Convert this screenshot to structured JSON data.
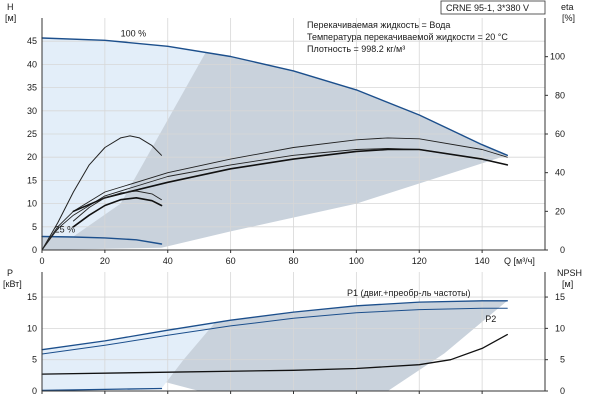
{
  "chart_data": {
    "type": "line",
    "model_label": "CRNE 95-1, 3*380 V",
    "info_lines": [
      "Перекачиваемая жидкость = Вода",
      "Температура перекачиваемой жидкости = 20 °C",
      "Плотность = 998.2 кг/м³"
    ],
    "x_axis": {
      "label": "Q [м³/ч]",
      "range": [
        0,
        160
      ],
      "ticks": [
        "0",
        "20",
        "40",
        "60",
        "80",
        "100",
        "120",
        "140"
      ]
    },
    "top_panel": {
      "y_left": {
        "label_line1": "H",
        "label_line2": "[м]",
        "range": [
          0,
          50
        ],
        "ticks": [
          "0",
          "5",
          "10",
          "15",
          "20",
          "25",
          "30",
          "35",
          "40",
          "45"
        ]
      },
      "y_right": {
        "label_line1": "eta",
        "label_line2": "[%]",
        "range": [
          0,
          120
        ],
        "ticks": [
          "0",
          "20",
          "40",
          "60",
          "80",
          "100"
        ]
      },
      "annotations": [
        {
          "text": "100 %",
          "x": 25,
          "y": 46
        },
        {
          "text": "25 %",
          "x": 4,
          "y": 3.8
        }
      ],
      "series": [
        {
          "axis": "left",
          "color": "#1c4f8c",
          "width": 1.4,
          "points": [
            [
              0,
              45.7
            ],
            [
              20,
              45.2
            ],
            [
              40,
              43.9
            ],
            [
              60,
              41.7
            ],
            [
              80,
              38.6
            ],
            [
              100,
              34.5
            ],
            [
              120,
              29.1
            ],
            [
              140,
              22.7
            ],
            [
              148,
              20.4
            ]
          ]
        },
        {
          "axis": "left",
          "color": "#1c4f8c",
          "width": 1.4,
          "points": [
            [
              0,
              2.9
            ],
            [
              10,
              2.8
            ],
            [
              20,
              2.6
            ],
            [
              30,
              2.2
            ],
            [
              38,
              1.3
            ]
          ]
        },
        {
          "axis": "right",
          "color": "#222222",
          "width": 1.0,
          "points": [
            [
              0,
              0
            ],
            [
              5,
              14
            ],
            [
              10,
              30
            ],
            [
              15,
              44
            ],
            [
              20,
              53
            ],
            [
              25,
              58
            ],
            [
              28,
              59
            ],
            [
              31,
              58
            ],
            [
              35,
              54
            ],
            [
              38,
              49
            ]
          ]
        },
        {
          "axis": "right",
          "color": "#222222",
          "width": 0.9,
          "points": [
            [
              0,
              0
            ],
            [
              5,
              12
            ],
            [
              10,
              20
            ],
            [
              20,
              30
            ],
            [
              40,
              40
            ],
            [
              60,
              47
            ],
            [
              80,
              53
            ],
            [
              100,
              57
            ],
            [
              110,
              58
            ],
            [
              120,
              57.5
            ],
            [
              140,
              52
            ],
            [
              148,
              48
            ]
          ]
        },
        {
          "axis": "right",
          "color": "#222222",
          "width": 0.9,
          "points": [
            [
              0,
              0
            ],
            [
              5,
              11
            ],
            [
              10,
              18
            ],
            [
              20,
              28
            ],
            [
              40,
              38
            ],
            [
              60,
              44
            ],
            [
              80,
              49
            ],
            [
              100,
              52
            ],
            [
              110,
              52.5
            ],
            [
              120,
              52
            ],
            [
              140,
              47
            ],
            [
              148,
              44
            ]
          ]
        },
        {
          "axis": "right",
          "color": "#111111",
          "width": 1.6,
          "points": [
            [
              10,
              20
            ],
            [
              20,
              27
            ],
            [
              40,
              35
            ],
            [
              60,
              42
            ],
            [
              80,
              47
            ],
            [
              100,
              51
            ],
            [
              110,
              52
            ],
            [
              120,
              52
            ],
            [
              140,
              47
            ],
            [
              148,
              44
            ]
          ]
        },
        {
          "axis": "right",
          "color": "#222222",
          "width": 0.9,
          "points": [
            [
              10,
              15
            ],
            [
              15,
              22
            ],
            [
              20,
              27
            ],
            [
              25,
              29.5
            ],
            [
              30,
              30.5
            ],
            [
              35,
              29
            ],
            [
              38,
              26
            ]
          ]
        },
        {
          "axis": "right",
          "color": "#111111",
          "width": 1.6,
          "points": [
            [
              10,
              12
            ],
            [
              15,
              18
            ],
            [
              20,
              23
            ],
            [
              25,
              26
            ],
            [
              30,
              27
            ],
            [
              35,
              25.5
            ],
            [
              38,
              23
            ]
          ]
        }
      ]
    },
    "bottom_panel": {
      "y_left": {
        "label_line1": "P",
        "label_line2": "[кВт]",
        "range": [
          0,
          19
        ],
        "ticks": [
          "0",
          "5",
          "10",
          "15"
        ]
      },
      "y_right": {
        "label_line1": "NPSH",
        "label_line2": "[м]",
        "range": [
          0,
          19
        ],
        "ticks": [
          "0",
          "5",
          "10",
          "15"
        ]
      },
      "labels": [
        {
          "text": "P1 (двиг.+преобр-ль частоты)",
          "x": 97,
          "y": 15.2
        },
        {
          "text": "P2",
          "x": 141,
          "y": 11.0
        }
      ],
      "series": [
        {
          "axis": "left",
          "color": "#1c4f8c",
          "width": 1.3,
          "points": [
            [
              0,
              6.6
            ],
            [
              20,
              8.0
            ],
            [
              40,
              9.7
            ],
            [
              60,
              11.3
            ],
            [
              80,
              12.6
            ],
            [
              100,
              13.6
            ],
            [
              120,
              14.2
            ],
            [
              140,
              14.4
            ],
            [
              148,
              14.4
            ]
          ]
        },
        {
          "axis": "left",
          "color": "#1c4f8c",
          "width": 1.0,
          "points": [
            [
              0,
              5.9
            ],
            [
              20,
              7.3
            ],
            [
              40,
              8.9
            ],
            [
              60,
              10.4
            ],
            [
              80,
              11.6
            ],
            [
              100,
              12.5
            ],
            [
              120,
              13.0
            ],
            [
              140,
              13.2
            ],
            [
              148,
              13.2
            ]
          ]
        },
        {
          "axis": "left",
          "color": "#1c4f8c",
          "width": 1.3,
          "points": [
            [
              0,
              0.1
            ],
            [
              20,
              0.25
            ],
            [
              38,
              0.4
            ]
          ]
        },
        {
          "axis": "right",
          "color": "#111111",
          "width": 1.3,
          "points": [
            [
              0,
              2.7
            ],
            [
              40,
              3.0
            ],
            [
              80,
              3.3
            ],
            [
              100,
              3.6
            ],
            [
              120,
              4.2
            ],
            [
              130,
              5.0
            ],
            [
              140,
              6.8
            ],
            [
              148,
              9.0
            ]
          ]
        }
      ]
    }
  }
}
